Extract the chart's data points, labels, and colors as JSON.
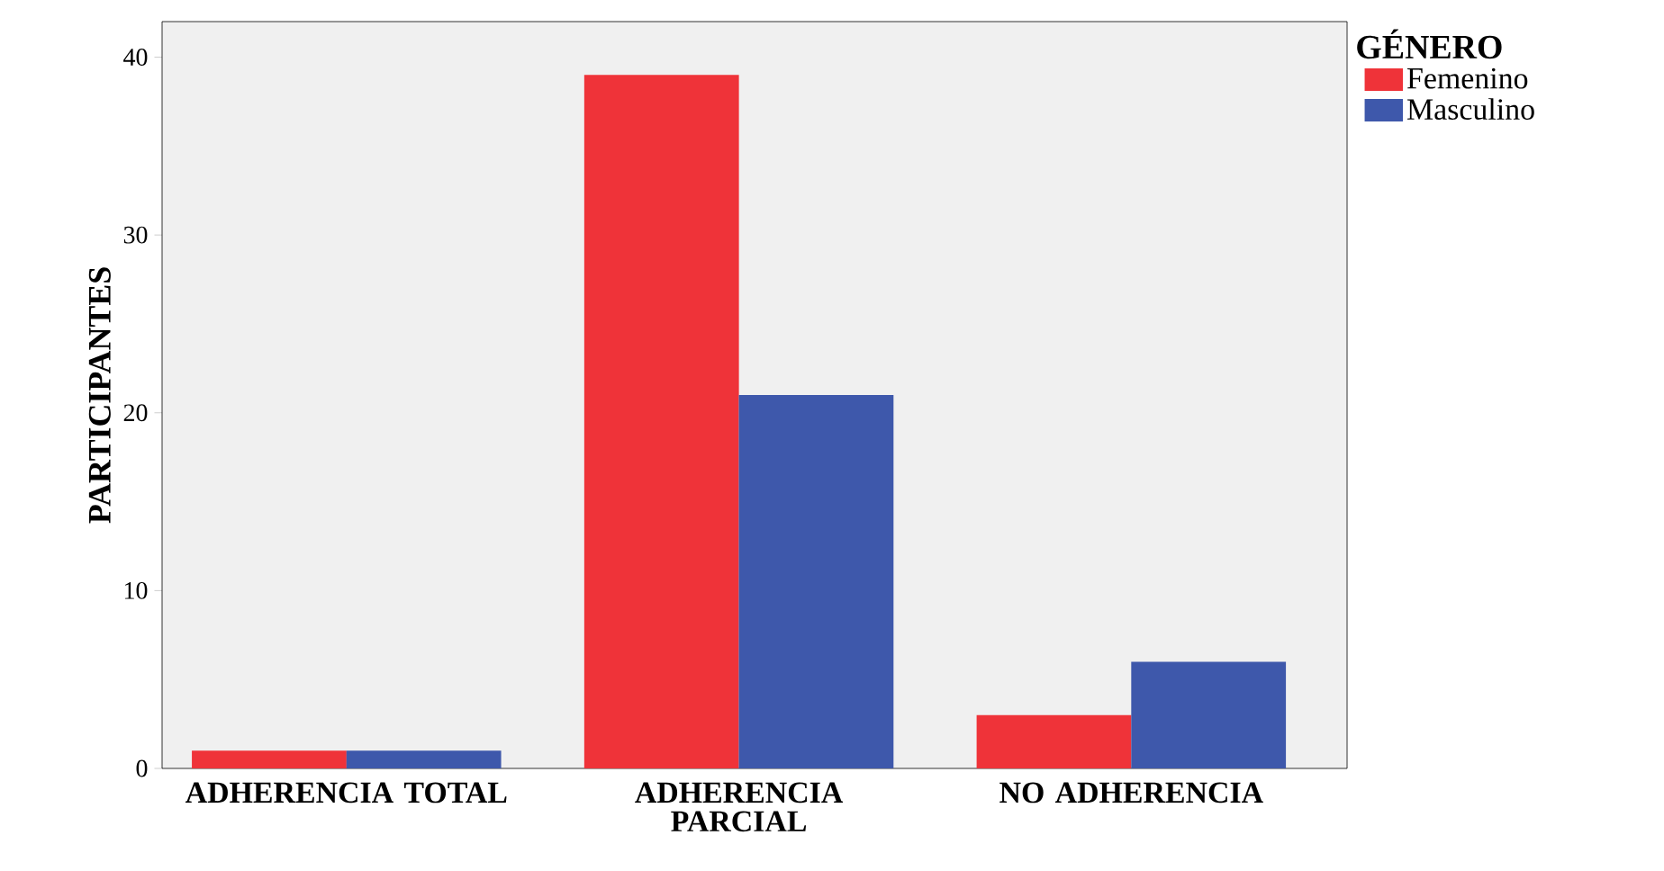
{
  "chart_data": {
    "type": "bar",
    "ylabel": "PARTICIPANTES",
    "legend_title": "GÉNERO",
    "categories": [
      "ADHERENCIA TOTAL",
      "ADHERENCIA PARCIAL",
      "NO ADHERENCIA"
    ],
    "series": [
      {
        "name": "Femenino",
        "color": "#ef3339",
        "values": [
          1,
          39,
          3
        ]
      },
      {
        "name": "Masculino",
        "color": "#3e58ab",
        "values": [
          1,
          21,
          6
        ]
      }
    ],
    "ylim": [
      0,
      42
    ],
    "yticks": [
      0,
      10,
      20,
      30,
      40
    ],
    "grid": false,
    "legend": "top right"
  }
}
